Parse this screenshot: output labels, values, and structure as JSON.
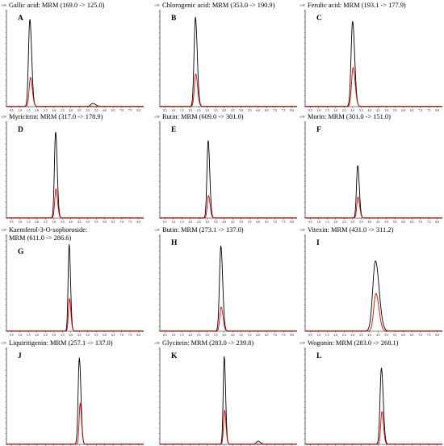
{
  "chart_data": [
    {
      "type": "line",
      "letter": "A",
      "title": "Gallic acid: MRM (169.0 -> 125.0)",
      "y_mark": "×10⁵",
      "x_ticks": [
        "0.5",
        "1.0",
        "1.5",
        "2.0",
        "2.5",
        "3.0",
        "3.5",
        "4.0",
        "4.5",
        "5.0",
        "5.5",
        "6.0",
        "6.5",
        "7.0",
        "7.5",
        "8.0"
      ],
      "xlim": [
        0.2,
        8.3
      ],
      "ylim": [
        0,
        1.9
      ],
      "series": [
        {
          "color": "#000000",
          "peaks": [
            {
              "x": 1.58,
              "height": 1.74,
              "width": 0.08
            },
            {
              "x": 5.3,
              "height": 0.06,
              "width": 0.12
            }
          ]
        },
        {
          "color": "#e00000",
          "peaks": [
            {
              "x": 1.62,
              "height": 0.58,
              "width": 0.08
            }
          ]
        }
      ]
    },
    {
      "type": "line",
      "letter": "B",
      "title": "Chlorogenic acid: MRM (353.0 -> 190.9)",
      "y_mark": "×10⁵",
      "x_ticks": [
        "0.5",
        "1.0",
        "1.5",
        "2.0",
        "2.5",
        "3.0",
        "3.5",
        "4.0",
        "4.5",
        "5.0",
        "5.5",
        "6.0",
        "6.5",
        "7.0",
        "7.5",
        "8.0"
      ],
      "xlim": [
        0.2,
        8.3
      ],
      "ylim": [
        0,
        1.9
      ],
      "series": [
        {
          "color": "#000000",
          "peaks": [
            {
              "x": 2.3,
              "height": 1.78,
              "width": 0.08
            }
          ]
        },
        {
          "color": "#e00000",
          "peaks": [
            {
              "x": 2.32,
              "height": 0.65,
              "width": 0.08
            }
          ]
        }
      ]
    },
    {
      "type": "line",
      "letter": "C",
      "title": "Ferulic acid: MRM (193.1 -> 177.9)",
      "y_mark": "×10⁵",
      "x_ticks": [
        "0.5",
        "1.0",
        "1.5",
        "2.0",
        "2.5",
        "3.0",
        "3.5",
        "4.0",
        "4.5",
        "5.0",
        "5.5",
        "6.0",
        "6.5",
        "7.0",
        "7.5",
        "8.0"
      ],
      "xlim": [
        0.2,
        8.3
      ],
      "ylim": [
        0,
        1.9
      ],
      "series": [
        {
          "color": "#000000",
          "peaks": [
            {
              "x": 3.0,
              "height": 1.7,
              "width": 0.09
            }
          ]
        },
        {
          "color": "#e00000",
          "peaks": [
            {
              "x": 3.03,
              "height": 0.78,
              "width": 0.09
            }
          ]
        }
      ]
    },
    {
      "type": "line",
      "letter": "D",
      "title": "Myricitrin: MRM (317.0 -> 178.9)",
      "y_mark": "×10⁵",
      "x_ticks": [
        "0.5",
        "1.0",
        "1.5",
        "2.0",
        "2.5",
        "3.0",
        "3.5",
        "4.0",
        "4.5",
        "5.0",
        "5.5",
        "6.0",
        "6.5",
        "7.0",
        "7.5",
        "8.0"
      ],
      "xlim": [
        0.2,
        8.3
      ],
      "ylim": [
        0,
        1.9
      ],
      "series": [
        {
          "color": "#000000",
          "peaks": [
            {
              "x": 3.1,
              "height": 1.72,
              "width": 0.07
            }
          ]
        },
        {
          "color": "#e00000",
          "peaks": [
            {
              "x": 3.12,
              "height": 0.58,
              "width": 0.07
            }
          ]
        }
      ]
    },
    {
      "type": "line",
      "letter": "E",
      "title": "Rutin: MRM (609.0 -> 301.0)",
      "y_mark": "×10⁵",
      "x_ticks": [
        "0.5",
        "1.0",
        "1.5",
        "2.0",
        "2.5",
        "3.0",
        "3.5",
        "4.0",
        "4.5",
        "5.0",
        "5.5",
        "6.0",
        "6.5",
        "7.0",
        "7.5",
        "8.0"
      ],
      "xlim": [
        0.2,
        8.3
      ],
      "ylim": [
        0,
        1.9
      ],
      "series": [
        {
          "color": "#000000",
          "peaks": [
            {
              "x": 3.05,
              "height": 1.55,
              "width": 0.07
            }
          ]
        },
        {
          "color": "#e00000",
          "peaks": [
            {
              "x": 3.07,
              "height": 0.45,
              "width": 0.07
            }
          ]
        }
      ]
    },
    {
      "type": "line",
      "letter": "F",
      "title": "Morin: MRM (301.0 -> 151.0)",
      "y_mark": "×10⁵",
      "x_ticks": [
        "0.5",
        "1.0",
        "1.5",
        "2.0",
        "2.5",
        "3.0",
        "3.5",
        "4.0",
        "4.5",
        "5.0",
        "5.5",
        "6.0",
        "6.5",
        "7.0",
        "7.5",
        "8.0"
      ],
      "xlim": [
        0.2,
        8.3
      ],
      "ylim": [
        0,
        1.9
      ],
      "series": [
        {
          "color": "#000000",
          "peaks": [
            {
              "x": 3.3,
              "height": 1.05,
              "width": 0.07
            }
          ]
        },
        {
          "color": "#e00000",
          "peaks": [
            {
              "x": 3.32,
              "height": 0.42,
              "width": 0.07
            }
          ]
        }
      ]
    },
    {
      "type": "line",
      "letter": "G",
      "title": "Kaemferol-3-O-sophoroside:",
      "title2": "MRM (611.0 -> 286.6)",
      "y_mark": "×10⁵",
      "x_ticks": [
        "0.5",
        "1.0",
        "1.5",
        "2.0",
        "2.5",
        "3.0",
        "3.5",
        "4.0",
        "4.5",
        "5.0",
        "5.5",
        "6.0",
        "6.5",
        "7.0",
        "7.5",
        "8.0"
      ],
      "xlim": [
        0.2,
        8.3
      ],
      "ylim": [
        0,
        1.9
      ],
      "series": [
        {
          "color": "#000000",
          "peaks": [
            {
              "x": 3.9,
              "height": 1.73,
              "width": 0.06
            }
          ]
        },
        {
          "color": "#e00000",
          "peaks": [
            {
              "x": 3.92,
              "height": 0.65,
              "width": 0.06
            }
          ]
        }
      ]
    },
    {
      "type": "line",
      "letter": "H",
      "title": "Butin: MRM (273.1 -> 137.0)",
      "y_mark": "×10⁵",
      "x_ticks": [
        "0.5",
        "1.0",
        "1.5",
        "2.0",
        "2.5",
        "3.0",
        "3.5",
        "4.0",
        "4.5",
        "5.0",
        "5.5",
        "6.0",
        "6.5",
        "7.0",
        "7.5",
        "8.0"
      ],
      "xlim": [
        0.2,
        8.3
      ],
      "ylim": [
        0,
        1.9
      ],
      "series": [
        {
          "color": "#000000",
          "peaks": [
            {
              "x": 3.8,
              "height": 1.7,
              "width": 0.08
            }
          ]
        },
        {
          "color": "#e00000",
          "peaks": [
            {
              "x": 3.82,
              "height": 0.48,
              "width": 0.08
            }
          ]
        }
      ]
    },
    {
      "type": "line",
      "letter": "I",
      "title": "Vitexin: MRM (431.0 -> 311.2)",
      "y_mark": "×10⁵",
      "x_ticks": [
        "0.5",
        "1.0",
        "1.5",
        "2.0",
        "2.5",
        "3.0",
        "3.5",
        "4.0",
        "4.5",
        "5.0",
        "5.5",
        "6.0",
        "6.5",
        "7.0",
        "7.5",
        "8.0"
      ],
      "xlim": [
        0.2,
        8.3
      ],
      "ylim": [
        0,
        1.9
      ],
      "series": [
        {
          "color": "#000000",
          "peaks": [
            {
              "x": 4.35,
              "height": 1.4,
              "width": 0.16
            }
          ]
        },
        {
          "color": "#e00000",
          "peaks": [
            {
              "x": 4.38,
              "height": 0.75,
              "width": 0.13
            }
          ]
        }
      ]
    },
    {
      "type": "line",
      "letter": "J",
      "title": "Liquiritigenin: MRM (257.1 -> 137.0)",
      "y_mark": "×10⁵",
      "x_ticks": [
        "0.5",
        "1.0",
        "1.5",
        "2.0",
        "2.5",
        "3.0",
        "3.5",
        "4.0",
        "4.5",
        "5.0",
        "5.5",
        "6.0",
        "6.5",
        "7.0",
        "7.5",
        "8.0"
      ],
      "xlim": [
        0.2,
        8.3
      ],
      "ylim": [
        0,
        1.9
      ],
      "series": [
        {
          "color": "#000000",
          "peaks": [
            {
              "x": 4.5,
              "height": 1.72,
              "width": 0.07
            }
          ]
        },
        {
          "color": "#e00000",
          "peaks": [
            {
              "x": 4.55,
              "height": 0.82,
              "width": 0.06
            }
          ]
        }
      ]
    },
    {
      "type": "line",
      "letter": "K",
      "title": "Glycitein: MRM (283.0 -> 239.8)",
      "y_mark": "×10⁵",
      "x_ticks": [
        "0.5",
        "1.0",
        "1.5",
        "2.0",
        "2.5",
        "3.0",
        "3.5",
        "4.0",
        "4.5",
        "5.0",
        "5.5",
        "6.0",
        "6.5",
        "7.0",
        "7.5",
        "8.0"
      ],
      "xlim": [
        0.2,
        8.3
      ],
      "ylim": [
        0,
        1.9
      ],
      "series": [
        {
          "color": "#000000",
          "peaks": [
            {
              "x": 4.0,
              "height": 1.75,
              "width": 0.06
            },
            {
              "x": 6.0,
              "height": 0.06,
              "width": 0.1
            }
          ]
        },
        {
          "color": "#e00000",
          "peaks": [
            {
              "x": 4.02,
              "height": 0.68,
              "width": 0.06
            }
          ]
        }
      ]
    },
    {
      "type": "line",
      "letter": "L",
      "title": "Wogonin: MRM (283.0 -> 268.1)",
      "y_mark": "×10⁵",
      "x_ticks": [
        "0.5",
        "1.0",
        "1.5",
        "2.0",
        "2.5",
        "3.0",
        "3.5",
        "4.0",
        "4.5",
        "5.0",
        "5.5",
        "6.0",
        "6.5",
        "7.0",
        "7.5",
        "8.0"
      ],
      "xlim": [
        0.2,
        8.3
      ],
      "ylim": [
        0,
        1.9
      ],
      "series": [
        {
          "color": "#000000",
          "peaks": [
            {
              "x": 4.7,
              "height": 1.52,
              "width": 0.08
            }
          ]
        },
        {
          "color": "#e00000",
          "peaks": [
            {
              "x": 4.73,
              "height": 0.65,
              "width": 0.07
            }
          ]
        }
      ]
    }
  ]
}
